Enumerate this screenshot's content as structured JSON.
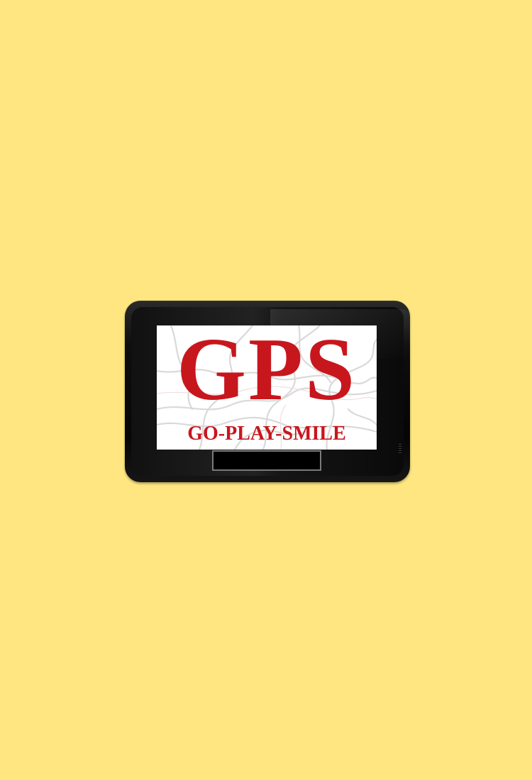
{
  "logo": {
    "title": "GPS",
    "tagline": "GO-PLAY-SMILE"
  },
  "colors": {
    "background": "#FFE680",
    "brand_red": "#C8161D",
    "device_body": "#0e0e0e"
  },
  "icons": {
    "map": "map-roads-icon"
  }
}
